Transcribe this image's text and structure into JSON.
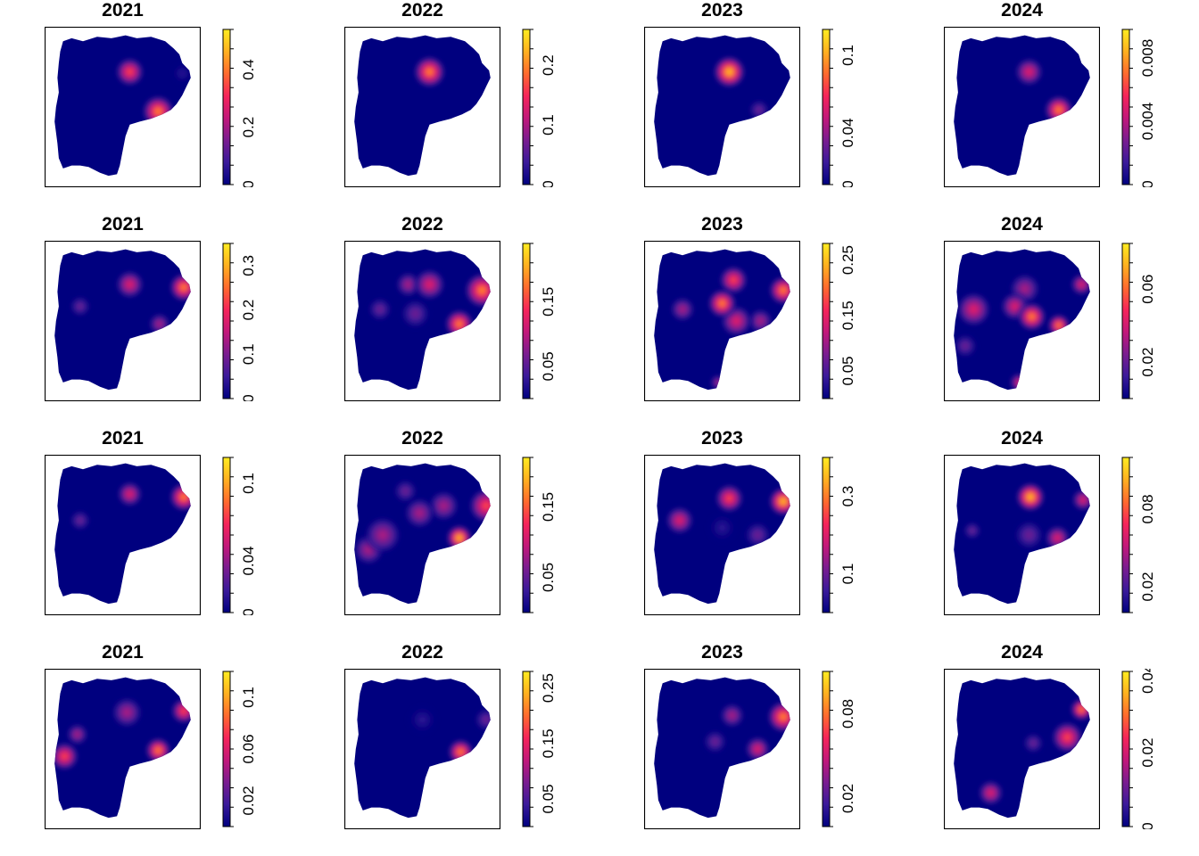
{
  "colors": {
    "palette": [
      "#000080",
      "#3a1a9a",
      "#7a1c90",
      "#c2187a",
      "#f5245a",
      "#ff6a2e",
      "#ffb020",
      "#ffec21"
    ],
    "background": "#ffffff",
    "map_fill": "#00007f"
  },
  "chart_data": [
    {
      "type": "heatmap",
      "title": "2021",
      "row": 1,
      "ticks": [
        "0",
        "0.2",
        "0.4"
      ],
      "tick_vals": [
        0,
        0.2,
        0.4
      ],
      "vmax": 0.54,
      "hotspots": [
        {
          "x": 0.55,
          "y": 0.26,
          "r": 0.09,
          "v": 0.42
        },
        {
          "x": 0.75,
          "y": 0.53,
          "r": 0.1,
          "v": 0.5
        },
        {
          "x": 0.92,
          "y": 0.27,
          "r": 0.07,
          "v": 0.05
        }
      ]
    },
    {
      "type": "heatmap",
      "title": "2022",
      "row": 1,
      "ticks": [
        "0",
        "0.1",
        "0.2"
      ],
      "tick_vals": [
        0,
        0.1,
        0.2
      ],
      "vmax": 0.26,
      "hotspots": [
        {
          "x": 0.55,
          "y": 0.26,
          "r": 0.1,
          "v": 0.24
        }
      ]
    },
    {
      "type": "heatmap",
      "title": "2023",
      "row": 1,
      "ticks": [
        "0",
        "0.04",
        "0.1"
      ],
      "tick_vals": [
        0,
        0.04,
        0.1
      ],
      "vmax": 0.12,
      "hotspots": [
        {
          "x": 0.55,
          "y": 0.26,
          "r": 0.1,
          "v": 0.115
        },
        {
          "x": 0.76,
          "y": 0.52,
          "r": 0.07,
          "v": 0.04
        }
      ]
    },
    {
      "type": "heatmap",
      "title": "2024",
      "row": 1,
      "ticks": [
        "0",
        "0.004",
        "0.008"
      ],
      "tick_vals": [
        0,
        0.004,
        0.008
      ],
      "vmax": 0.0098,
      "hotspots": [
        {
          "x": 0.55,
          "y": 0.26,
          "r": 0.09,
          "v": 0.006
        },
        {
          "x": 0.76,
          "y": 0.52,
          "r": 0.09,
          "v": 0.0085
        }
      ]
    },
    {
      "type": "heatmap",
      "title": "2021",
      "row": 2,
      "ticks": [
        "0",
        "0.1",
        "0.2",
        "0.3"
      ],
      "tick_vals": [
        0,
        0.1,
        0.2,
        0.3
      ],
      "vmax": 0.35,
      "hotspots": [
        {
          "x": 0.55,
          "y": 0.25,
          "r": 0.09,
          "v": 0.22
        },
        {
          "x": 0.93,
          "y": 0.27,
          "r": 0.09,
          "v": 0.32
        },
        {
          "x": 0.76,
          "y": 0.52,
          "r": 0.07,
          "v": 0.15
        },
        {
          "x": 0.2,
          "y": 0.4,
          "r": 0.07,
          "v": 0.08
        }
      ]
    },
    {
      "type": "heatmap",
      "title": "2022",
      "row": 2,
      "ticks": [
        "0.05",
        "0.15"
      ],
      "tick_vals": [
        0.05,
        0.15
      ],
      "vmax": 0.24,
      "hotspots": [
        {
          "x": 0.55,
          "y": 0.25,
          "r": 0.1,
          "v": 0.14
        },
        {
          "x": 0.92,
          "y": 0.29,
          "r": 0.11,
          "v": 0.19
        },
        {
          "x": 0.76,
          "y": 0.52,
          "r": 0.09,
          "v": 0.21
        },
        {
          "x": 0.4,
          "y": 0.25,
          "r": 0.08,
          "v": 0.1
        },
        {
          "x": 0.2,
          "y": 0.42,
          "r": 0.08,
          "v": 0.08
        },
        {
          "x": 0.45,
          "y": 0.45,
          "r": 0.1,
          "v": 0.06
        }
      ]
    },
    {
      "type": "heatmap",
      "title": "2023",
      "row": 2,
      "ticks": [
        "0.05",
        "0.15",
        "0.25"
      ],
      "tick_vals": [
        0.05,
        0.15,
        0.25
      ],
      "vmax": 0.28,
      "hotspots": [
        {
          "x": 0.5,
          "y": 0.38,
          "r": 0.09,
          "v": 0.26
        },
        {
          "x": 0.58,
          "y": 0.22,
          "r": 0.09,
          "v": 0.18
        },
        {
          "x": 0.6,
          "y": 0.5,
          "r": 0.1,
          "v": 0.15
        },
        {
          "x": 0.93,
          "y": 0.29,
          "r": 0.09,
          "v": 0.24
        },
        {
          "x": 0.22,
          "y": 0.42,
          "r": 0.08,
          "v": 0.12
        },
        {
          "x": 0.77,
          "y": 0.5,
          "r": 0.08,
          "v": 0.1
        },
        {
          "x": 0.47,
          "y": 0.92,
          "r": 0.05,
          "v": 0.1
        }
      ]
    },
    {
      "type": "heatmap",
      "title": "2024",
      "row": 2,
      "ticks": [
        "0.02",
        "0.06"
      ],
      "tick_vals": [
        0.02,
        0.06
      ],
      "vmax": 0.085,
      "hotspots": [
        {
          "x": 0.57,
          "y": 0.47,
          "r": 0.09,
          "v": 0.078
        },
        {
          "x": 0.76,
          "y": 0.53,
          "r": 0.07,
          "v": 0.07
        },
        {
          "x": 0.16,
          "y": 0.42,
          "r": 0.11,
          "v": 0.05
        },
        {
          "x": 0.52,
          "y": 0.28,
          "r": 0.1,
          "v": 0.04
        },
        {
          "x": 0.45,
          "y": 0.4,
          "r": 0.09,
          "v": 0.045
        },
        {
          "x": 0.92,
          "y": 0.25,
          "r": 0.07,
          "v": 0.045
        },
        {
          "x": 0.1,
          "y": 0.67,
          "r": 0.08,
          "v": 0.03
        },
        {
          "x": 0.48,
          "y": 0.92,
          "r": 0.06,
          "v": 0.045
        }
      ]
    },
    {
      "type": "heatmap",
      "title": "2021",
      "row": 3,
      "ticks": [
        "0",
        "0.04",
        "0.1"
      ],
      "tick_vals": [
        0,
        0.04,
        0.1
      ],
      "vmax": 0.12,
      "hotspots": [
        {
          "x": 0.55,
          "y": 0.22,
          "r": 0.08,
          "v": 0.06
        },
        {
          "x": 0.93,
          "y": 0.24,
          "r": 0.09,
          "v": 0.11
        },
        {
          "x": 0.2,
          "y": 0.4,
          "r": 0.07,
          "v": 0.04
        }
      ]
    },
    {
      "type": "heatmap",
      "title": "2022",
      "row": 3,
      "ticks": [
        "0.05",
        "0.15"
      ],
      "tick_vals": [
        0.05,
        0.15
      ],
      "vmax": 0.22,
      "hotspots": [
        {
          "x": 0.76,
          "y": 0.52,
          "r": 0.08,
          "v": 0.21
        },
        {
          "x": 0.95,
          "y": 0.3,
          "r": 0.11,
          "v": 0.17
        },
        {
          "x": 0.65,
          "y": 0.3,
          "r": 0.1,
          "v": 0.1
        },
        {
          "x": 0.48,
          "y": 0.35,
          "r": 0.1,
          "v": 0.1
        },
        {
          "x": 0.22,
          "y": 0.5,
          "r": 0.12,
          "v": 0.1
        },
        {
          "x": 0.12,
          "y": 0.6,
          "r": 0.1,
          "v": 0.08
        },
        {
          "x": 0.38,
          "y": 0.2,
          "r": 0.08,
          "v": 0.06
        }
      ]
    },
    {
      "type": "heatmap",
      "title": "2023",
      "row": 3,
      "ticks": [
        "0.1",
        "0.3"
      ],
      "tick_vals": [
        0.1,
        0.3
      ],
      "vmax": 0.4,
      "hotspots": [
        {
          "x": 0.93,
          "y": 0.27,
          "r": 0.09,
          "v": 0.38
        },
        {
          "x": 0.55,
          "y": 0.25,
          "r": 0.09,
          "v": 0.26
        },
        {
          "x": 0.2,
          "y": 0.4,
          "r": 0.09,
          "v": 0.25
        },
        {
          "x": 0.75,
          "y": 0.5,
          "r": 0.09,
          "v": 0.12
        },
        {
          "x": 0.5,
          "y": 0.45,
          "r": 0.1,
          "v": 0.08
        }
      ]
    },
    {
      "type": "heatmap",
      "title": "2024",
      "row": 3,
      "ticks": [
        "0.02",
        "0.08"
      ],
      "tick_vals": [
        0.02,
        0.08
      ],
      "vmax": 0.12,
      "hotspots": [
        {
          "x": 0.56,
          "y": 0.24,
          "r": 0.09,
          "v": 0.115
        },
        {
          "x": 0.93,
          "y": 0.26,
          "r": 0.07,
          "v": 0.06
        },
        {
          "x": 0.75,
          "y": 0.52,
          "r": 0.08,
          "v": 0.07
        },
        {
          "x": 0.55,
          "y": 0.5,
          "r": 0.1,
          "v": 0.04
        },
        {
          "x": 0.15,
          "y": 0.47,
          "r": 0.06,
          "v": 0.03
        }
      ]
    },
    {
      "type": "heatmap",
      "title": "2021",
      "row": 4,
      "ticks": [
        "0.02",
        "0.06",
        "0.1"
      ],
      "tick_vals": [
        0.02,
        0.06,
        0.1
      ],
      "vmax": 0.12,
      "hotspots": [
        {
          "x": 0.75,
          "y": 0.51,
          "r": 0.08,
          "v": 0.1
        },
        {
          "x": 0.09,
          "y": 0.55,
          "r": 0.09,
          "v": 0.08
        },
        {
          "x": 0.93,
          "y": 0.24,
          "r": 0.08,
          "v": 0.08
        },
        {
          "x": 0.53,
          "y": 0.25,
          "r": 0.1,
          "v": 0.05
        },
        {
          "x": 0.18,
          "y": 0.4,
          "r": 0.07,
          "v": 0.05
        }
      ]
    },
    {
      "type": "heatmap",
      "title": "2022",
      "row": 4,
      "ticks": [
        "0.05",
        "0.15",
        "0.25"
      ],
      "tick_vals": [
        0.05,
        0.15,
        0.25
      ],
      "vmax": 0.28,
      "hotspots": [
        {
          "x": 0.77,
          "y": 0.52,
          "r": 0.08,
          "v": 0.26
        },
        {
          "x": 0.95,
          "y": 0.3,
          "r": 0.08,
          "v": 0.09
        },
        {
          "x": 0.5,
          "y": 0.3,
          "r": 0.1,
          "v": 0.05
        }
      ]
    },
    {
      "type": "heatmap",
      "title": "2023",
      "row": 4,
      "ticks": [
        "0.02",
        "0.08"
      ],
      "tick_vals": [
        0.02,
        0.08
      ],
      "vmax": 0.11,
      "hotspots": [
        {
          "x": 0.93,
          "y": 0.28,
          "r": 0.1,
          "v": 0.1
        },
        {
          "x": 0.75,
          "y": 0.5,
          "r": 0.08,
          "v": 0.07
        },
        {
          "x": 0.57,
          "y": 0.27,
          "r": 0.08,
          "v": 0.045
        },
        {
          "x": 0.45,
          "y": 0.45,
          "r": 0.08,
          "v": 0.03
        }
      ]
    },
    {
      "type": "heatmap",
      "title": "2024",
      "row": 4,
      "ticks": [
        "0",
        "0.02",
        "0.04"
      ],
      "tick_vals": [
        0,
        0.02,
        0.04
      ],
      "vmax": 0.042,
      "hotspots": [
        {
          "x": 0.92,
          "y": 0.23,
          "r": 0.07,
          "v": 0.038
        },
        {
          "x": 0.82,
          "y": 0.42,
          "r": 0.1,
          "v": 0.028
        },
        {
          "x": 0.28,
          "y": 0.8,
          "r": 0.08,
          "v": 0.022
        },
        {
          "x": 0.58,
          "y": 0.46,
          "r": 0.07,
          "v": 0.015
        }
      ]
    }
  ]
}
